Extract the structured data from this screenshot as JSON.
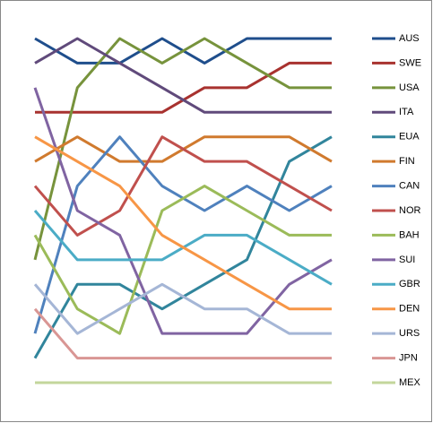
{
  "chart_data": {
    "type": "line",
    "categories": [
      null,
      null,
      null,
      null,
      null,
      null,
      null,
      null
    ],
    "ylim": [
      15,
      1
    ],
    "legend": "right",
    "series": [
      {
        "name": "AUS",
        "color": "#1F4E8C",
        "values": [
          1,
          2,
          2,
          1,
          2,
          1,
          1,
          1
        ]
      },
      {
        "name": "SWE",
        "color": "#A8322F",
        "values": [
          4,
          4,
          4,
          4,
          3,
          3,
          2,
          2
        ]
      },
      {
        "name": "USA",
        "color": "#77933C",
        "values": [
          10,
          3,
          1,
          2,
          1,
          2,
          3,
          3
        ]
      },
      {
        "name": "ITA",
        "color": "#604A7B",
        "values": [
          2,
          1,
          2,
          3,
          4,
          4,
          4,
          4
        ]
      },
      {
        "name": "EUA",
        "color": "#31859C",
        "values": [
          14,
          11,
          11,
          12,
          11,
          10,
          6,
          5
        ]
      },
      {
        "name": "FIN",
        "color": "#D07A2E",
        "values": [
          6,
          5,
          6,
          6,
          5,
          5,
          5,
          6
        ]
      },
      {
        "name": "CAN",
        "color": "#4F81BD",
        "values": [
          13,
          7,
          5,
          7,
          8,
          7,
          8,
          7
        ]
      },
      {
        "name": "NOR",
        "color": "#C0504D",
        "values": [
          7,
          9,
          8,
          5,
          6,
          6,
          7,
          8
        ]
      },
      {
        "name": "BAH",
        "color": "#9BBB59",
        "values": [
          9,
          12,
          13,
          8,
          7,
          8,
          9,
          9
        ]
      },
      {
        "name": "SUI",
        "color": "#8064A2",
        "values": [
          3,
          8,
          9,
          13,
          13,
          13,
          11,
          10
        ]
      },
      {
        "name": "GBR",
        "color": "#4BACC6",
        "values": [
          8,
          10,
          10,
          10,
          9,
          9,
          10,
          11
        ]
      },
      {
        "name": "DEN",
        "color": "#F79646",
        "values": [
          5,
          6,
          7,
          9,
          10,
          11,
          12,
          12
        ]
      },
      {
        "name": "URS",
        "color": "#A5B6D6",
        "values": [
          11,
          13,
          12,
          11,
          12,
          12,
          13,
          13
        ]
      },
      {
        "name": "JPN",
        "color": "#D99694",
        "values": [
          12,
          14,
          14,
          14,
          14,
          14,
          14,
          14
        ]
      },
      {
        "name": "MEX",
        "color": "#C3D69B",
        "values": [
          15,
          15,
          15,
          15,
          15,
          15,
          15,
          15
        ]
      }
    ]
  }
}
